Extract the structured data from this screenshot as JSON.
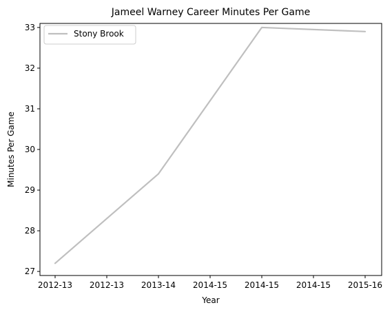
{
  "chart_data": {
    "type": "line",
    "title": "Jameel Warney Career Minutes Per Game",
    "xlabel": "Year",
    "ylabel": "Minutes Per Game",
    "x_tick_labels": [
      "2012-13",
      "2012-13",
      "2013-14",
      "2014-15",
      "2014-15",
      "2014-15",
      "2015-16"
    ],
    "x": [
      "2012-13",
      "2013-14",
      "2014-15",
      "2015-16"
    ],
    "y_ticks": [
      27,
      28,
      29,
      30,
      31,
      32,
      33
    ],
    "ylim": [
      26.9,
      33.1
    ],
    "grid": false,
    "legend_position": "top-left",
    "series": [
      {
        "name": "Stony Brook",
        "values": [
          27.2,
          29.4,
          33.0,
          32.9
        ],
        "color": "#bfbfbf"
      }
    ]
  }
}
